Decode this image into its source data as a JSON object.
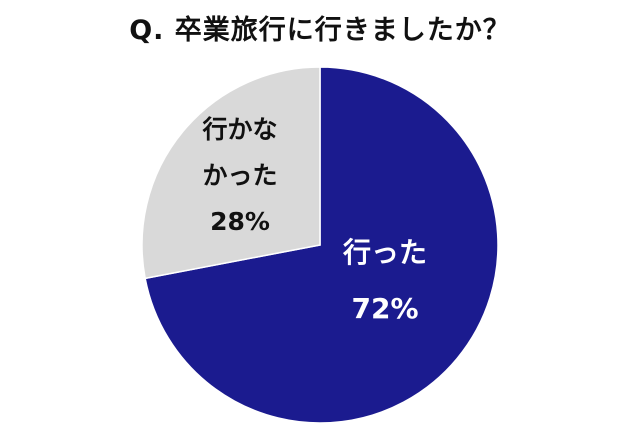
{
  "chart_data": {
    "type": "pie",
    "title": "Q. 卒業旅行に行きましたか？",
    "slices": [
      {
        "label_lines": [
          "行った"
        ],
        "value": 72,
        "value_label": "72%",
        "color": "#1b1b8f",
        "text_color": "#ffffff"
      },
      {
        "label_lines": [
          "行かな",
          "かった"
        ],
        "value": 28,
        "value_label": "28%",
        "color": "#d9d9d9",
        "text_color": "#111111"
      }
    ],
    "start_angle": "top",
    "direction": "clockwise"
  }
}
